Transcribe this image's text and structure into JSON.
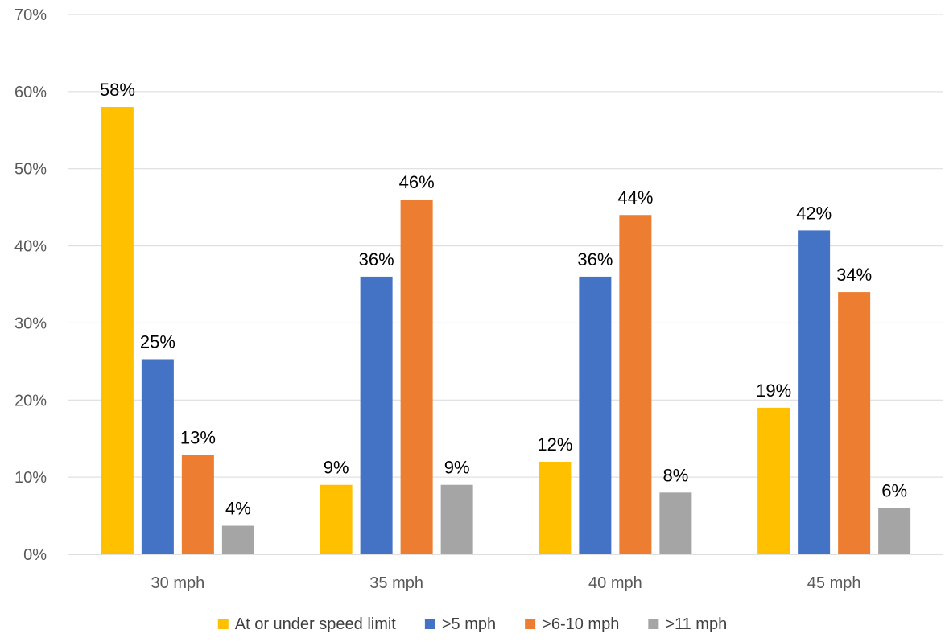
{
  "chart_data": {
    "type": "bar",
    "title": "",
    "xlabel": "",
    "ylabel": "",
    "categories": [
      "30 mph",
      "35 mph",
      "40 mph",
      "45 mph"
    ],
    "series": [
      {
        "name": "At or under speed limit",
        "color": "#FFC000",
        "values": [
          58,
          9,
          12,
          19
        ],
        "labels": [
          "58%",
          "9%",
          "12%",
          "19%"
        ]
      },
      {
        "name": ">5 mph",
        "color": "#4472C4",
        "values": [
          25.3,
          36,
          36,
          42
        ],
        "labels": [
          "25%",
          "36%",
          "36%",
          "42%"
        ]
      },
      {
        "name": ">6-10 mph",
        "color": "#ED7D31",
        "values": [
          12.9,
          46,
          44,
          34
        ],
        "labels": [
          "13%",
          "46%",
          "44%",
          "34%"
        ]
      },
      {
        "name": ">11 mph",
        "color": "#A5A5A5",
        "values": [
          3.7,
          9,
          8,
          6
        ],
        "labels": [
          "4%",
          "9%",
          "8%",
          "6%"
        ]
      }
    ],
    "ylim": [
      0,
      70
    ],
    "yticks": [
      0,
      10,
      20,
      30,
      40,
      50,
      60,
      70
    ],
    "ytick_labels": [
      "0%",
      "10%",
      "20%",
      "30%",
      "40%",
      "50%",
      "60%",
      "70%"
    ],
    "grid": true,
    "legend_position": "bottom"
  }
}
